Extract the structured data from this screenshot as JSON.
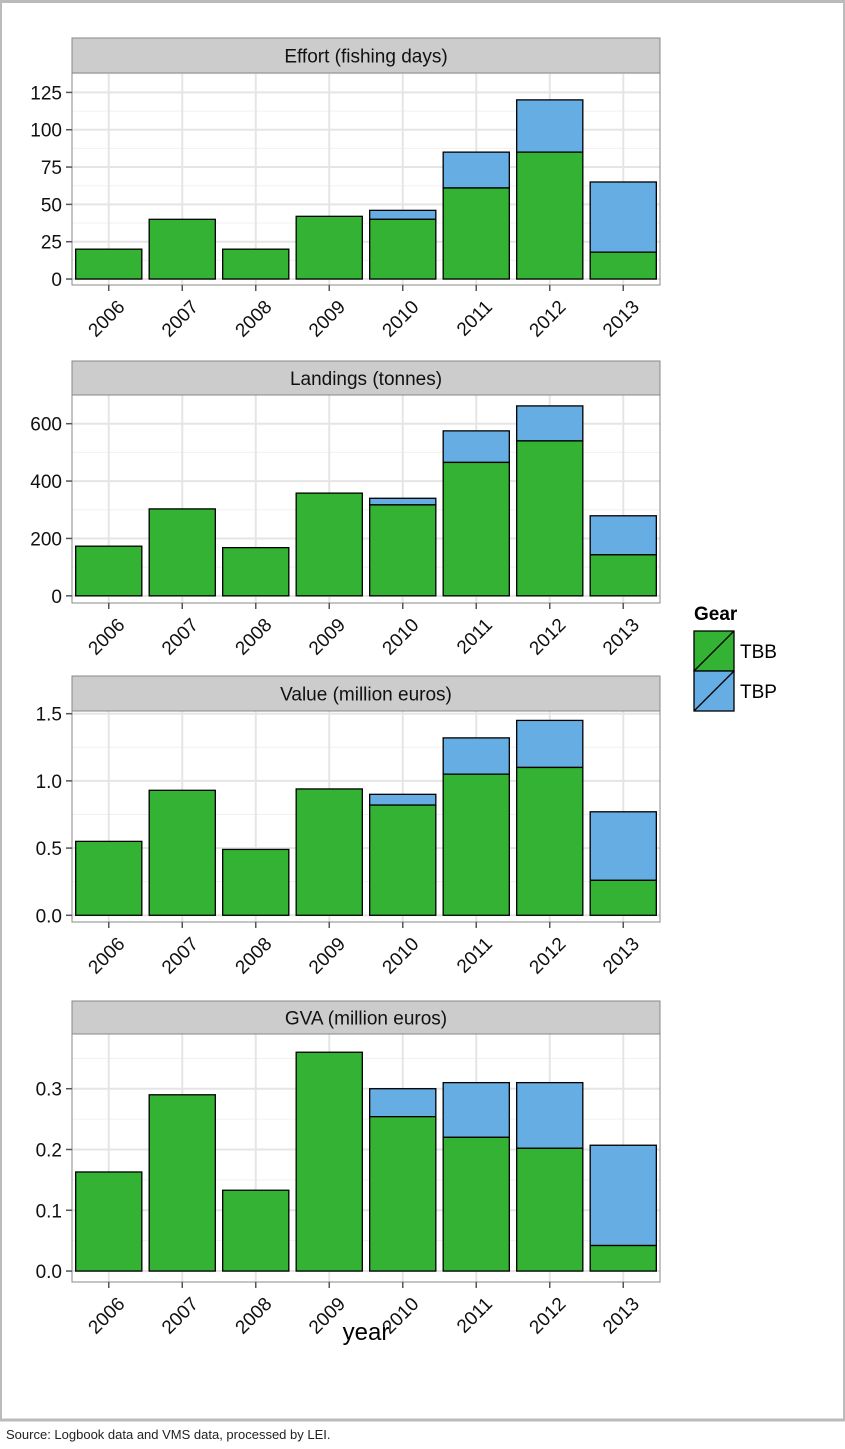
{
  "figure": {
    "x_axis_title": "year",
    "source_note": "Source: Logbook data and VMS data, processed by LEI."
  },
  "legend": {
    "title": "Gear",
    "items": [
      "TBB",
      "TBP"
    ]
  },
  "colors": {
    "TBB": "#33b233",
    "TBP": "#66ade3",
    "panel_bg": "#ffffff",
    "strip_bg": "#cccccc",
    "grid": "#e5e5e5",
    "frame": "#bbbbbb"
  },
  "chart_data": [
    {
      "type": "bar",
      "stacked": true,
      "title": "Effort (fishing days)",
      "xlabel": "",
      "ylabel": "",
      "categories": [
        "2006",
        "2007",
        "2008",
        "2009",
        "2010",
        "2011",
        "2012",
        "2013"
      ],
      "series": [
        {
          "name": "TBB",
          "values": [
            20,
            40,
            20,
            42,
            40,
            61,
            85,
            18
          ]
        },
        {
          "name": "TBP",
          "values": [
            0,
            0,
            0,
            0,
            6,
            24,
            35,
            47
          ]
        }
      ],
      "ylim": [
        -4,
        138
      ],
      "yticks": [
        0,
        25,
        50,
        75,
        100,
        125
      ],
      "ytick_labels": [
        "0",
        "25",
        "50",
        "75",
        "100",
        "125"
      ],
      "grid": true
    },
    {
      "type": "bar",
      "stacked": true,
      "title": "Landings (tonnes)",
      "xlabel": "",
      "ylabel": "",
      "categories": [
        "2006",
        "2007",
        "2008",
        "2009",
        "2010",
        "2011",
        "2012",
        "2013"
      ],
      "series": [
        {
          "name": "TBB",
          "values": [
            173,
            303,
            168,
            358,
            317,
            465,
            540,
            143
          ]
        },
        {
          "name": "TBP",
          "values": [
            0,
            0,
            0,
            0,
            23,
            110,
            122,
            136
          ]
        }
      ],
      "ylim": [
        -25,
        700
      ],
      "yticks": [
        0,
        200,
        400,
        600
      ],
      "ytick_labels": [
        "0",
        "200",
        "400",
        "600"
      ],
      "grid": true
    },
    {
      "type": "bar",
      "stacked": true,
      "title": "Value (million euros)",
      "xlabel": "",
      "ylabel": "",
      "categories": [
        "2006",
        "2007",
        "2008",
        "2009",
        "2010",
        "2011",
        "2012",
        "2013"
      ],
      "series": [
        {
          "name": "TBB",
          "values": [
            0.55,
            0.93,
            0.49,
            0.94,
            0.82,
            1.05,
            1.1,
            0.26
          ]
        },
        {
          "name": "TBP",
          "values": [
            0,
            0,
            0,
            0,
            0.08,
            0.27,
            0.35,
            0.51
          ]
        }
      ],
      "ylim": [
        -0.05,
        1.52
      ],
      "yticks": [
        0,
        0.5,
        1.0,
        1.5
      ],
      "ytick_labels": [
        "0.0",
        "0.5",
        "1.0",
        "1.5"
      ],
      "grid": true
    },
    {
      "type": "bar",
      "stacked": true,
      "title": "GVA (million euros)",
      "xlabel": "year",
      "ylabel": "",
      "categories": [
        "2006",
        "2007",
        "2008",
        "2009",
        "2010",
        "2011",
        "2012",
        "2013"
      ],
      "series": [
        {
          "name": "TBB",
          "values": [
            0.163,
            0.29,
            0.133,
            0.36,
            0.254,
            0.22,
            0.202,
            0.042
          ]
        },
        {
          "name": "TBP",
          "values": [
            0,
            0,
            0,
            0,
            0.046,
            0.09,
            0.108,
            0.165
          ]
        }
      ],
      "ylim": [
        -0.018,
        0.39
      ],
      "yticks": [
        0,
        0.1,
        0.2,
        0.3
      ],
      "ytick_labels": [
        "0.0",
        "0.1",
        "0.2",
        "0.3"
      ],
      "grid": true
    }
  ]
}
